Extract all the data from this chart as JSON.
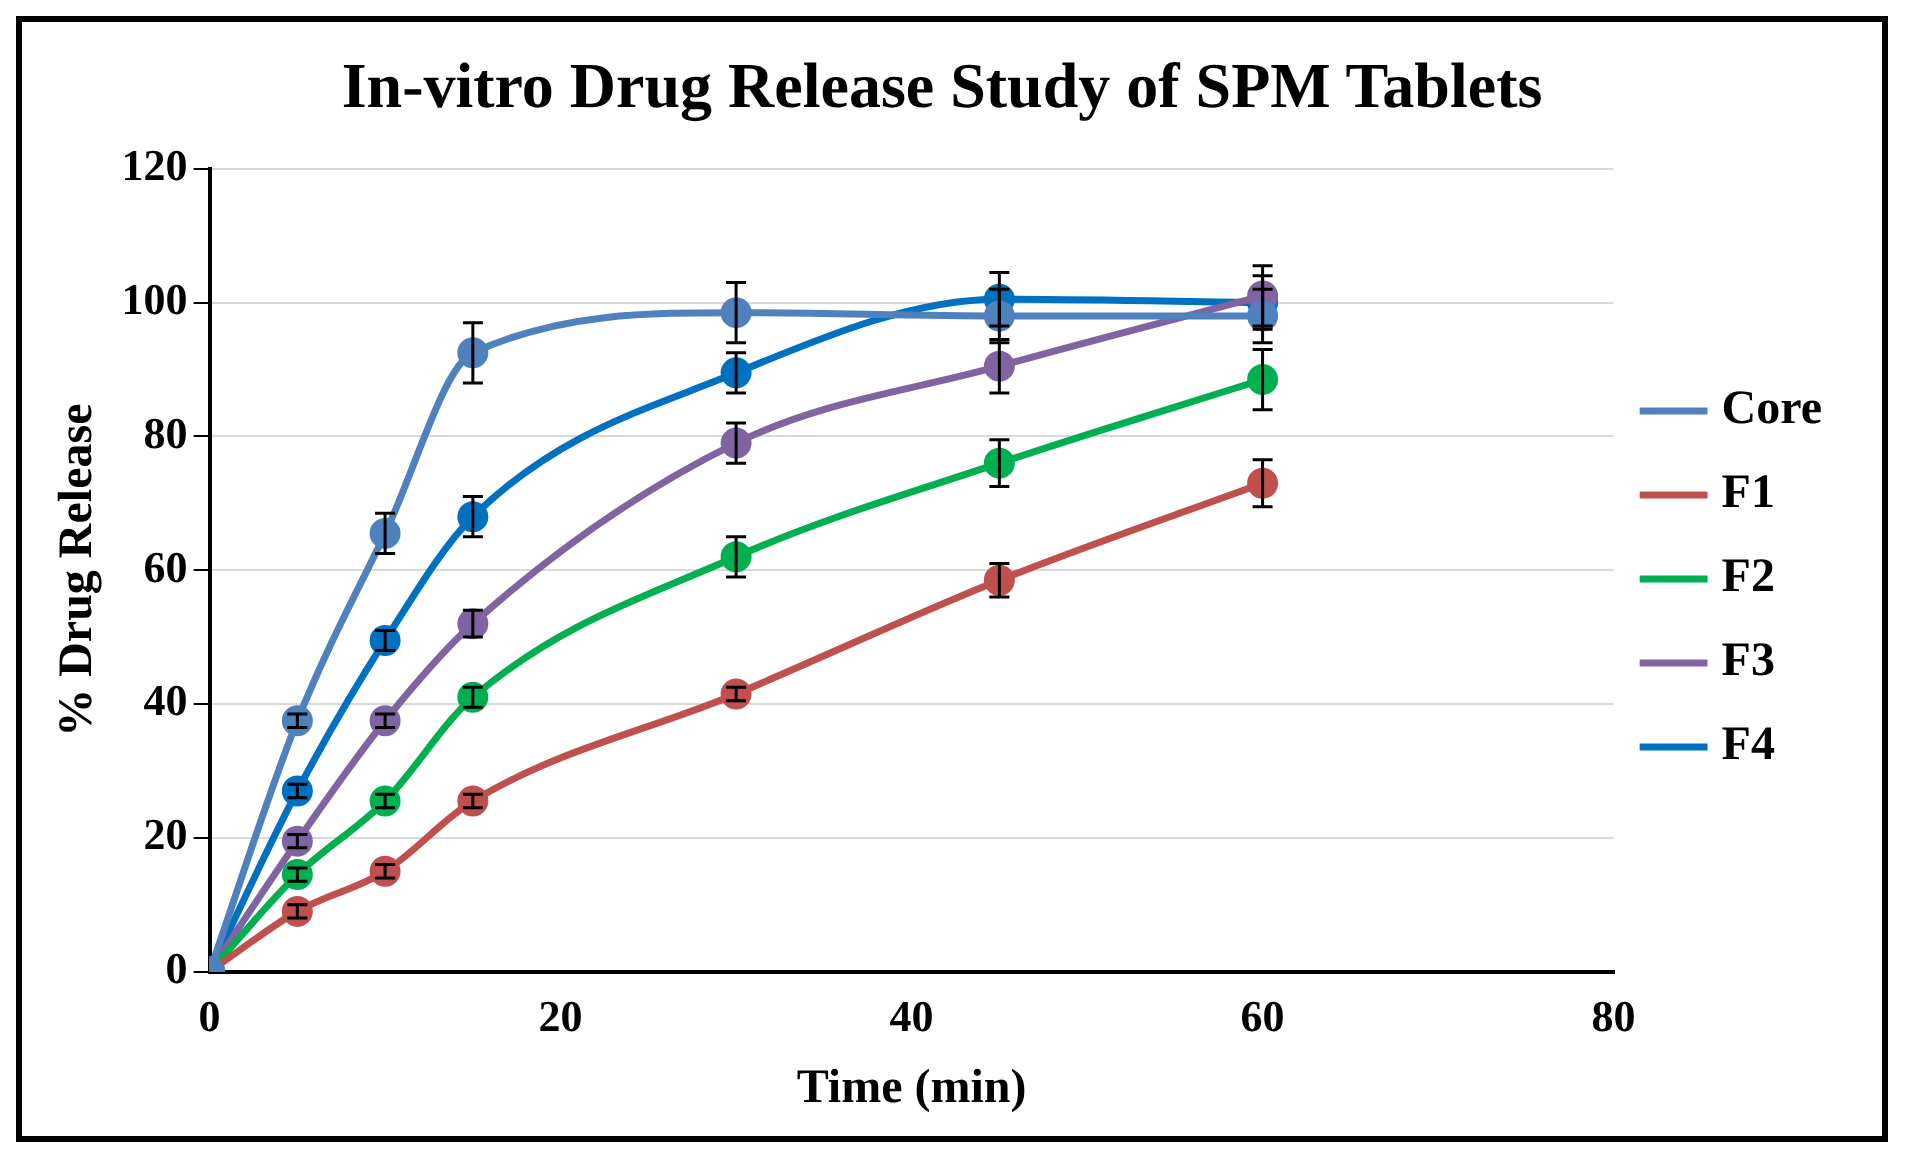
{
  "chart_data": {
    "type": "line",
    "title": "In-vitro Drug Release Study of SPM Tablets",
    "xlabel": "Time (min)",
    "ylabel": "% Drug Release",
    "x": [
      0,
      5,
      10,
      15,
      30,
      45,
      60
    ],
    "series": [
      {
        "name": "Core",
        "color": "#4f81bd",
        "values": [
          0,
          37.5,
          65.5,
          92.5,
          98.5,
          98,
          98
        ],
        "errors": [
          null,
          1,
          3,
          4.5,
          4.5,
          4,
          4
        ]
      },
      {
        "name": "F1",
        "color": "#c0504d",
        "values": [
          0,
          9,
          15,
          25.5,
          41.5,
          58.5,
          73
        ],
        "errors": [
          null,
          1,
          1,
          1,
          1,
          2.5,
          3.5
        ]
      },
      {
        "name": "F2",
        "color": "#00b050",
        "values": [
          0,
          14.5,
          25.5,
          41,
          62,
          76,
          88.5
        ],
        "errors": [
          null,
          1,
          1,
          1.5,
          3,
          3.5,
          4.5
        ]
      },
      {
        "name": "F3",
        "color": "#8064a2",
        "values": [
          0,
          19.5,
          37.5,
          52,
          79,
          90.5,
          101
        ],
        "errors": [
          null,
          1,
          1,
          2,
          3,
          4,
          4.5
        ]
      },
      {
        "name": "F4",
        "color": "#0070c0",
        "values": [
          0,
          27,
          49.5,
          68,
          89.5,
          100.5,
          100
        ],
        "errors": [
          null,
          1,
          1.5,
          3,
          3,
          4,
          4
        ]
      }
    ],
    "xlim": [
      0,
      80
    ],
    "xticks": [
      0,
      20,
      40,
      60,
      80
    ],
    "ylim": [
      0,
      120
    ],
    "yticks": [
      0,
      20,
      40,
      60,
      80,
      100,
      120
    ],
    "grid": "y",
    "legend": "right",
    "marker": "circle",
    "line_style": "solid"
  }
}
